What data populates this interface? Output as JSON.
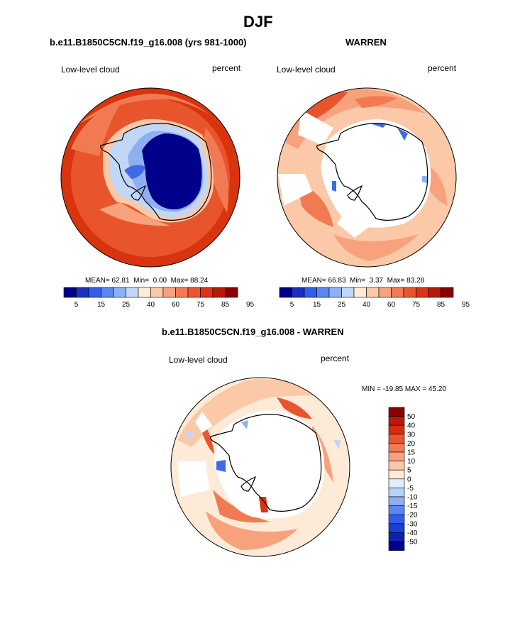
{
  "page": {
    "title": "DJF"
  },
  "panels": [
    {
      "title": "b.e11.B1850C5CN.f19_g16.008 (yrs 981-1000)",
      "left_label": "Low-level cloud",
      "right_label": "percent",
      "stats": {
        "mean_label": "MEAN=",
        "mean": "62.81",
        "min_label": "Min=",
        "min": "0.00",
        "max_label": "Max=",
        "max": "88.24"
      }
    },
    {
      "title": "WARREN",
      "left_label": "Low-level cloud",
      "right_label": "percent",
      "stats": {
        "mean_label": "MEAN=",
        "mean": "66.83",
        "min_label": "Min=",
        "min": "3.37",
        "max_label": "Max=",
        "max": "83.28"
      }
    },
    {
      "title": "b.e11.B1850C5CN.f19_g16.008 - WARREN",
      "left_label": "Low-level cloud",
      "right_label": "percent",
      "minmax_text": "MIN = -19.85 MAX =  45.20"
    }
  ],
  "colorbar_abs": {
    "colors": [
      "#00008b",
      "#1a2fc4",
      "#2f5fe8",
      "#5a86f0",
      "#8eb0f3",
      "#c2d6f7",
      "#fdebd8",
      "#fbc9a8",
      "#f8a27d",
      "#f37a55",
      "#ea5531",
      "#db3317",
      "#b81a08",
      "#8b0000"
    ],
    "tick_labels": [
      "5",
      "15",
      "25",
      "40",
      "60",
      "75",
      "85",
      "95"
    ]
  },
  "colorbar_diff": {
    "colors": [
      "#8b0000",
      "#b81a08",
      "#d52e0f",
      "#ea5531",
      "#f37a55",
      "#f8a27d",
      "#fbc9a8",
      "#fdebd8",
      "#e0edfb",
      "#b8d1f7",
      "#8eb0f3",
      "#5a86f0",
      "#2f5fe8",
      "#1a3fd6",
      "#0d22b0",
      "#00008b"
    ],
    "tick_labels": [
      "50",
      "40",
      "30",
      "20",
      "15",
      "10",
      "5",
      "0",
      "-5",
      "-10",
      "-15",
      "-20",
      "-30",
      "-40",
      "-50"
    ]
  },
  "map_colors": {
    "deep_red": "#d8340f",
    "red": "#e8552d",
    "orange": "#f27a52",
    "salmon": "#f8a27d",
    "light": "#fbc9a8",
    "pale": "#fdebd8",
    "ice_light": "#c2d6f7",
    "ice_mid": "#8eb0f3",
    "ice_blue": "#3d6ae8",
    "ice_dark": "#00008b"
  }
}
